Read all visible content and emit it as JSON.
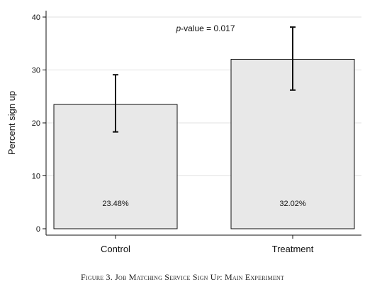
{
  "chart_data": {
    "type": "bar",
    "categories": [
      "Control",
      "Treatment"
    ],
    "values": [
      23.48,
      32.02
    ],
    "data_labels": [
      "23.48%",
      "32.02%"
    ],
    "error_bars": [
      {
        "low": 18.3,
        "high": 29.1
      },
      {
        "low": 26.2,
        "high": 38.1
      }
    ],
    "ylabel": "Percent sign up",
    "ylim": [
      0,
      40
    ],
    "yticks": [
      0,
      10,
      20,
      30,
      40
    ],
    "grid": true,
    "bar_color": "#e8e8e8",
    "annotation": {
      "italic_part": "p",
      "rest": "-value = 0.017"
    },
    "caption": "Figure 3. Job Matching Service Sign Up: Main Experiment"
  }
}
